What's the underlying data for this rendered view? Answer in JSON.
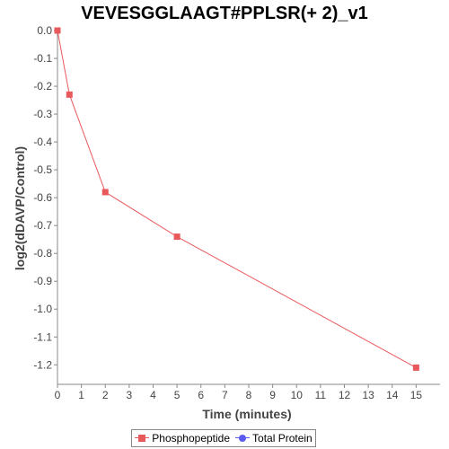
{
  "chart_data": {
    "type": "line",
    "title": "VEVESGGLAAGT#PPLSR(+ 2)_v1",
    "xlabel": "Time (minutes)",
    "ylabel": "log2(dDAVP/Control)",
    "xlim": [
      0,
      16
    ],
    "ylim": [
      -1.27,
      0
    ],
    "x_ticks": [
      0,
      1,
      2,
      3,
      4,
      5,
      6,
      7,
      8,
      9,
      10,
      11,
      12,
      13,
      14,
      15
    ],
    "y_ticks": [
      0.0,
      -0.1,
      -0.2,
      -0.3,
      -0.4,
      -0.5,
      -0.6,
      -0.7,
      -0.8,
      -0.9,
      -1.0,
      -1.1,
      -1.2
    ],
    "y_tick_labels": [
      "0.0",
      "-0.1",
      "-0.2",
      "-0.3",
      "-0.4",
      "-0.5",
      "-0.6",
      "-0.7",
      "-0.8",
      "-0.9",
      "-1.0",
      "-1.1",
      "-1.2"
    ],
    "grid": false,
    "legend_position": "bottom",
    "series": [
      {
        "name": "Phosphopeptide",
        "color": "#e8595c",
        "marker": "square",
        "x": [
          0,
          0.5,
          2,
          5,
          15
        ],
        "y": [
          0.0,
          -0.23,
          -0.58,
          -0.74,
          -1.21
        ]
      },
      {
        "name": "Total Protein",
        "color": "#5b5bf0",
        "marker": "circle",
        "x": [],
        "y": []
      }
    ]
  }
}
